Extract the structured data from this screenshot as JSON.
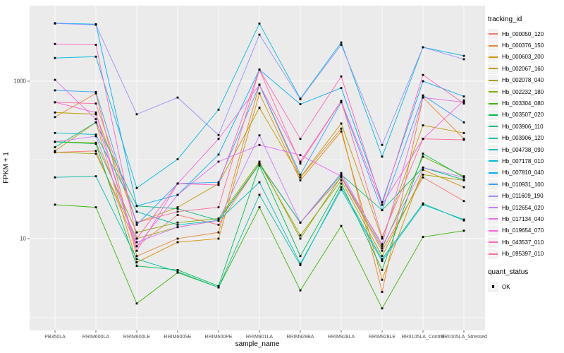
{
  "figure": {
    "background": "#FFFFFF",
    "panel_background": "#EBEBEB",
    "gridline_color": "#FFFFFF",
    "tick_label_color": "#4D4D4D",
    "point_color": "#000000",
    "legend_key_background": "#F2F2F2"
  },
  "chart_data": {
    "type": "line",
    "title": "",
    "xlabel": "sample_name",
    "ylabel": "FPKM + 1",
    "y_scale": "log10",
    "y_major_breaks": [
      10,
      1000
    ],
    "y_minor_breaks": [
      1,
      100
    ],
    "ylim_log10": [
      -0.2,
      3.95
    ],
    "grid": true,
    "legend_position": "right",
    "legend_tracking_title": "tracking_id",
    "legend_quant_title": "quant_status",
    "legend_quant_entries": [
      "OK"
    ],
    "categories": [
      "PB350LA",
      "RRIM600LA",
      "RRIM600LE",
      "RRIM600SE",
      "RRIM600PE",
      "RRIM901LA",
      "RRIM928BA",
      "RRIM928LA",
      "RRIM928LE",
      "RRII105LA_Control",
      "RRII105LA_Stressed"
    ],
    "series": [
      {
        "name": "Hb_000050_120",
        "color": "#F8766D",
        "values": [
          125,
          130,
          8,
          20,
          15,
          90,
          16,
          60,
          7,
          60,
          30
        ]
      },
      {
        "name": "Hb_000376_150",
        "color": "#EA8331",
        "values": [
          350,
          700,
          6,
          10,
          12,
          900,
          60,
          250,
          2.1,
          620,
          185
        ]
      },
      {
        "name": "Hb_000603_200",
        "color": "#D89000",
        "values": [
          130,
          300,
          5,
          9,
          10,
          700,
          55,
          230,
          3,
          75,
          45
        ]
      },
      {
        "name": "Hb_002067_160",
        "color": "#C09B00",
        "values": [
          400,
          380,
          16,
          25,
          50,
          460,
          60,
          290,
          10,
          275,
          220
        ]
      },
      {
        "name": "Hb_002078_040",
        "color": "#A3A500",
        "values": [
          125,
          120,
          10,
          14,
          17,
          90,
          11,
          55,
          6,
          65,
          55
        ]
      },
      {
        "name": "Hb_002232_180",
        "color": "#7CAE00",
        "values": [
          170,
          165,
          12,
          16,
          18,
          95,
          10,
          62,
          7.5,
          110,
          62
        ]
      },
      {
        "name": "Hb_003304_080",
        "color": "#39B600",
        "values": [
          27,
          25,
          1.5,
          3.7,
          2.4,
          25,
          2.2,
          14.5,
          1.3,
          10.5,
          12.6
        ]
      },
      {
        "name": "Hb_003507_020",
        "color": "#00BB4E",
        "values": [
          170,
          160,
          4.5,
          4,
          2.5,
          85,
          6,
          50,
          4,
          120,
          60
        ]
      },
      {
        "name": "Hb_003906_110",
        "color": "#00BF7D",
        "values": [
          145,
          300,
          26,
          24,
          17,
          88,
          16,
          65,
          23,
          80,
          56
        ]
      },
      {
        "name": "Hb_003906_120",
        "color": "#00C1A3",
        "values": [
          60,
          62,
          5.5,
          3.8,
          2.4,
          36,
          4.6,
          45,
          5.5,
          28,
          17
        ]
      },
      {
        "name": "Hb_004738_090",
        "color": "#00BFC4",
        "values": [
          220,
          210,
          22,
          15,
          17,
          52,
          4.8,
          42,
          5.2,
          27,
          17.5
        ]
      },
      {
        "name": "Hb_007178_010",
        "color": "#00BAE0",
        "values": [
          1970,
          2050,
          44,
          102,
          435,
          5400,
          600,
          3100,
          110,
          2700,
          2100
        ]
      },
      {
        "name": "Hb_007810_040",
        "color": "#00B0F6",
        "values": [
          5460,
          5300,
          26,
          36,
          117,
          1400,
          510,
          820,
          29,
          1000,
          640
        ]
      },
      {
        "name": "Hb_010931_100",
        "color": "#35A2FF",
        "values": [
          765,
          730,
          15,
          50,
          52,
          900,
          65,
          540,
          23,
          660,
          300
        ]
      },
      {
        "name": "Hb_011609_190",
        "color": "#9590FF",
        "values": [
          5400,
          5200,
          380,
          620,
          207,
          3900,
          590,
          2900,
          155,
          2700,
          1900
        ]
      },
      {
        "name": "Hb_012654_020",
        "color": "#C77CFF",
        "values": [
          170,
          200,
          9,
          14,
          17,
          205,
          16,
          68,
          8,
          80,
          60
        ]
      },
      {
        "name": "Hb_017134_040",
        "color": "#E76BF3",
        "values": [
          1040,
          330,
          8,
          36,
          95,
          155,
          115,
          62,
          8.5,
          620,
          540
        ]
      },
      {
        "name": "Hb_019654_070",
        "color": "#FA62DB",
        "values": [
          540,
          400,
          7,
          50,
          185,
          900,
          95,
          560,
          27,
          185,
          570
        ]
      },
      {
        "name": "Hb_043537_010",
        "color": "#FF62BC",
        "values": [
          2970,
          2900,
          10,
          50,
          48,
          1400,
          185,
          1150,
          27,
          1200,
          520
        ]
      },
      {
        "name": "Hb_095397_010",
        "color": "#FF6A98",
        "values": [
          540,
          520,
          16,
          22,
          25,
          1400,
          90,
          560,
          10.5,
          185,
          180
        ]
      }
    ]
  }
}
